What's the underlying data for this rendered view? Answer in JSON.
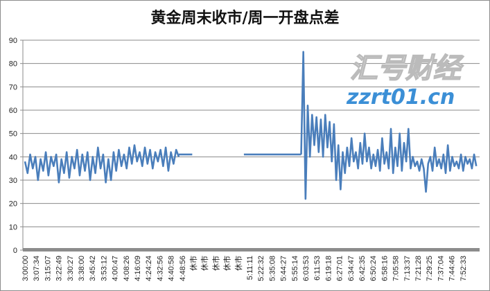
{
  "chart_data": {
    "type": "line",
    "title": "黄金周末收市/周一开盘点差",
    "xlabel": "",
    "ylabel": "",
    "ylim": [
      0,
      90
    ],
    "yticks": [
      0,
      10,
      20,
      30,
      40,
      50,
      60,
      70,
      80,
      90
    ],
    "grid": true,
    "legend": "none",
    "color": "#4a7ebb",
    "categories": [
      "3:00:00",
      "3:07:34",
      "3:15:07",
      "3:22:49",
      "3:30:27",
      "3:38:00",
      "3:45:42",
      "3:53:12",
      "4:00:47",
      "4:08:26",
      "4:16:09",
      "4:24:24",
      "4:32:56",
      "4:40:58",
      "4:48:56",
      "休市",
      "休市",
      "休市",
      "休市",
      "休市",
      "5:11:11",
      "5:22:32",
      "5:35:08",
      "5:44:27",
      "5:55:14",
      "6:03:53",
      "6:11:53",
      "6:19:18",
      "6:27:01",
      "6:34:47",
      "6:42:35",
      "6:50:24",
      "6:58:16",
      "7:05:58",
      "7:13:37",
      "7:21:28",
      "7:29:25",
      "7:37:04",
      "7:44:46",
      "7:52:33"
    ],
    "segments": [
      {
        "from": 0,
        "to": 13.7,
        "values": [
          38,
          33,
          41,
          35,
          40,
          30,
          39,
          34,
          42,
          32,
          40,
          36,
          41,
          29,
          39,
          33,
          42,
          31,
          40,
          35,
          43,
          32,
          41,
          34,
          42,
          30,
          40,
          33,
          44,
          35,
          41,
          29,
          39,
          30,
          42,
          34,
          43,
          36,
          41,
          35,
          44,
          37,
          45,
          38,
          42,
          36,
          44,
          37,
          43,
          35,
          42,
          38,
          43,
          36,
          44,
          34,
          42,
          37,
          43,
          40
        ]
      },
      {
        "from": 13.7,
        "to": 14.9,
        "values": [
          41,
          41
        ]
      },
      {
        "from": 19.5,
        "to": 24.6,
        "values": [
          41,
          41
        ]
      },
      {
        "from": 24.6,
        "to": 40.2,
        "values": [
          41,
          85,
          22,
          62,
          40,
          58,
          45,
          57,
          42,
          56,
          40,
          58,
          44,
          55,
          38,
          54,
          30,
          45,
          26,
          42,
          33,
          44,
          36,
          48,
          38,
          42,
          35,
          46,
          37,
          50,
          38,
          44,
          35,
          41,
          36,
          43,
          34,
          48,
          37,
          42,
          35,
          52,
          33,
          44,
          36,
          50,
          34,
          46,
          38,
          52,
          35,
          40,
          36,
          38,
          34,
          39,
          35,
          25,
          37,
          40,
          34,
          44,
          36,
          39,
          35,
          41,
          33,
          45,
          34,
          40,
          36,
          38,
          35,
          41,
          34,
          40,
          37,
          39,
          35,
          41,
          36
        ]
      }
    ]
  },
  "watermark": {
    "logo": "汇号财经",
    "url": "zzrt01.cn"
  }
}
